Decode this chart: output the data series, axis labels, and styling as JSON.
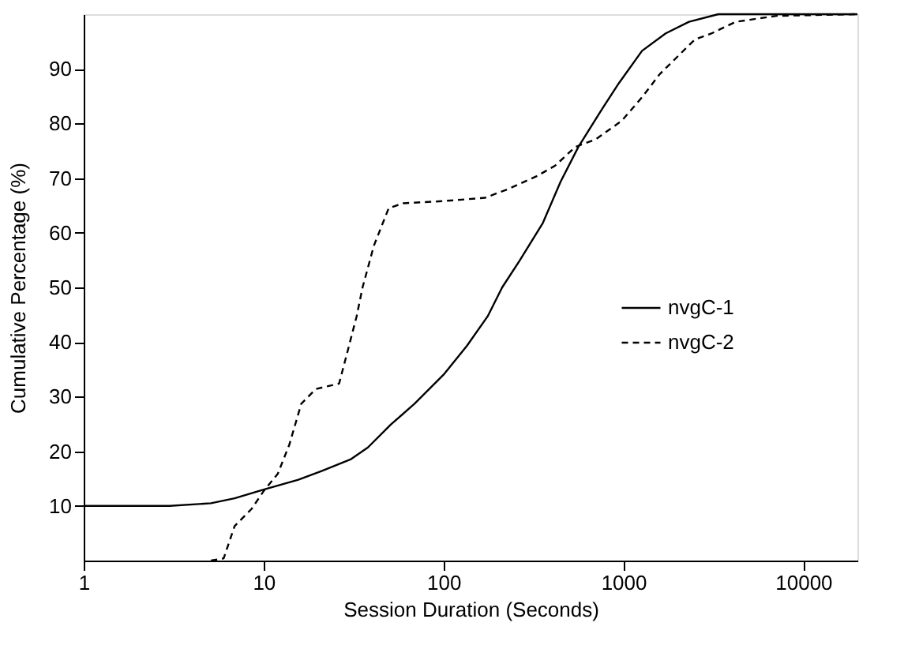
{
  "chart_data": {
    "type": "line",
    "xlabel": "Session Duration (Seconds)",
    "ylabel": "Cumulative Percentage (%)",
    "log": "x",
    "xlim": [
      1,
      20000
    ],
    "xticks": [
      1,
      10,
      100,
      1000,
      10000
    ],
    "ylim": [
      0,
      100
    ],
    "yticks": [
      10,
      20,
      30,
      40,
      50,
      60,
      70,
      80,
      90
    ],
    "grid": false,
    "legend": "right",
    "marker": "none",
    "series": [
      {
        "name": "nvgC-1",
        "color": "#000000",
        "line_style": "solid",
        "x": [
          1,
          3,
          5.1,
          6.9,
          10,
          15.6,
          21,
          30.4,
          38,
          51,
          69,
          100,
          135,
          176,
          212,
          265,
          357,
          447,
          562,
          760,
          945,
          1270,
          1720,
          2315,
          3370,
          20000
        ],
        "values": [
          10,
          10,
          10.5,
          11.4,
          13,
          14.8,
          16.4,
          18.5,
          20.7,
          24.9,
          28.7,
          34,
          39.3,
          44.7,
          50,
          54.9,
          61.8,
          69.3,
          75.7,
          82.6,
          87.4,
          93.3,
          96.5,
          98.6,
          100,
          100
        ]
      },
      {
        "name": "nvgC-2",
        "color": "#000000",
        "line_style": "dashed",
        "x": [
          5.1,
          6.0,
          6.9,
          8.6,
          10,
          12,
          13.9,
          16.2,
          19.5,
          26.3,
          29.3,
          32.9,
          35.5,
          41,
          49.6,
          59.7,
          100,
          170,
          229,
          332,
          418,
          540,
          702,
          980,
          1270,
          1590,
          2500,
          3100,
          4200,
          7100,
          20000
        ],
        "values": [
          0,
          0.4,
          6.3,
          9.5,
          12.7,
          15.9,
          21.2,
          28.7,
          31.4,
          32.4,
          38.3,
          44.7,
          50,
          57.6,
          64.5,
          65.4,
          65.8,
          66.4,
          68,
          70.4,
          72.3,
          75.7,
          77.1,
          80.5,
          84.8,
          89,
          95.4,
          96.5,
          98.6,
          99.7,
          100
        ]
      }
    ]
  }
}
